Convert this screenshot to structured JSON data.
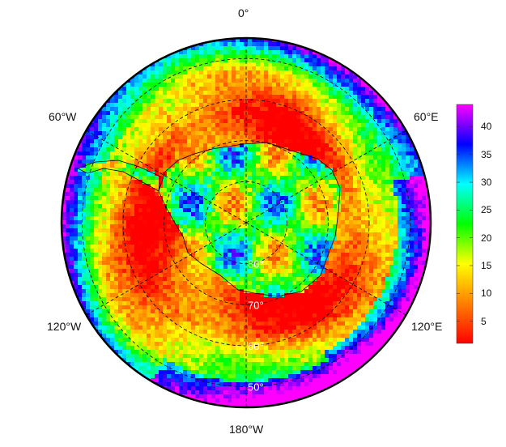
{
  "map": {
    "projection": "south polar stereographic",
    "longitude_labels": {
      "top": "0°",
      "upper_left": "60°W",
      "upper_right": "60°E",
      "lower_left": "120°W",
      "lower_right": "120°E",
      "bottom": "180°W"
    },
    "latitude_labels": [
      "80°",
      "70°",
      "60°",
      "50°"
    ],
    "latitude_label_values": [
      80,
      70,
      60,
      50
    ],
    "grid_line_style": "dashed",
    "continent_outline_color": "#000000"
  },
  "colorbar": {
    "min": 1,
    "max": 44,
    "tick_values": [
      5,
      10,
      15,
      20,
      25,
      30,
      35,
      40
    ],
    "tick_labels": [
      "5",
      "10",
      "15",
      "20",
      "25",
      "30",
      "35",
      "40"
    ],
    "colormap": [
      "#ff0000",
      "#ff7f00",
      "#ffff00",
      "#00ff00",
      "#00ffff",
      "#0000ff",
      "#ff00ff"
    ]
  }
}
